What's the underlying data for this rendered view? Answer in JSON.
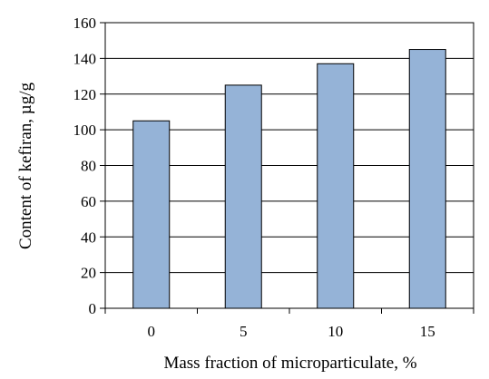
{
  "chart_data": {
    "type": "bar",
    "categories": [
      "0",
      "5",
      "10",
      "15"
    ],
    "values": [
      105,
      125,
      137,
      145
    ],
    "xlabel": "Mass fraction of microparticulate, %",
    "ylabel": "Content of kefiran, µg/g",
    "ylim": [
      0,
      160
    ],
    "yticks": [
      0,
      20,
      40,
      60,
      80,
      100,
      120,
      140,
      160
    ],
    "grid": true,
    "legend": "none",
    "colors": {
      "bar_fill": "#95b3d7",
      "bar_stroke": "#000000",
      "grid": "#000000"
    }
  }
}
